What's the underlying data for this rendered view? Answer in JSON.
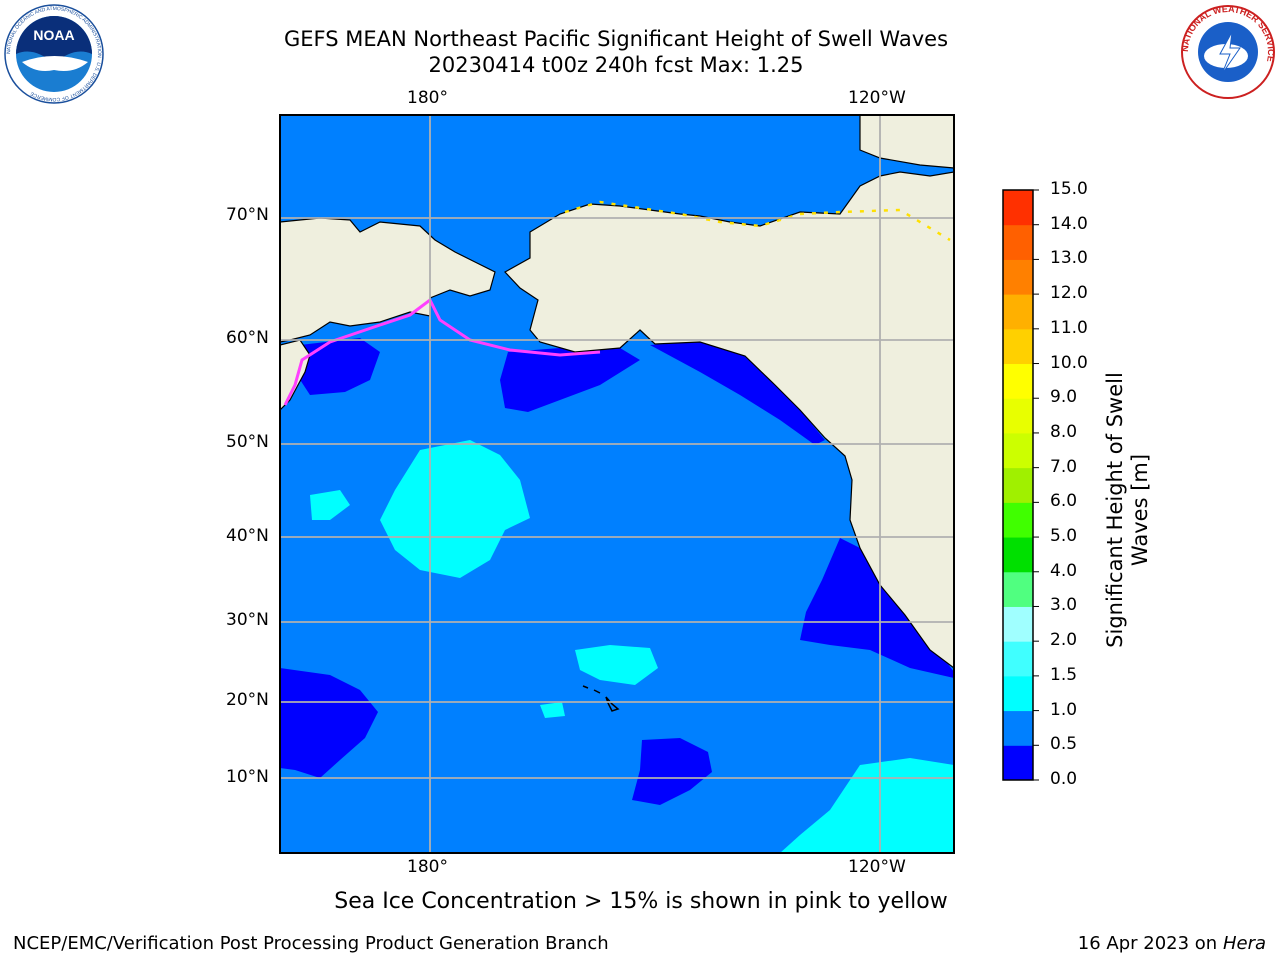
{
  "title_line1": "GEFS MEAN Northeast Pacific Significant Height of Swell Waves",
  "title_line2": "20230414 t00z 240h fcst   Max: 1.25",
  "lon_labels_top": [
    "180°",
    "120°W"
  ],
  "lon_labels_bottom": [
    "180°",
    "120°W"
  ],
  "lat_labels": [
    "70°N",
    "60°N",
    "50°N",
    "40°N",
    "30°N",
    "20°N",
    "10°N"
  ],
  "colorbar": {
    "label": "Significant Height of Swell Waves [m]",
    "ticks": [
      "0.0",
      "0.5",
      "1.0",
      "1.5",
      "2.0",
      "3.0",
      "4.0",
      "5.0",
      "6.0",
      "7.0",
      "8.0",
      "9.0",
      "10.0",
      "11.0",
      "12.0",
      "13.0",
      "14.0",
      "15.0"
    ],
    "colors": [
      "#0000ff",
      "#0080ff",
      "#00ffff",
      "#40ffff",
      "#a0ffff",
      "#50ff80",
      "#00e000",
      "#40ff00",
      "#a0f000",
      "#ccff00",
      "#e8ff00",
      "#ffff00",
      "#ffd000",
      "#ffb000",
      "#ff8000",
      "#ff6000",
      "#ff3000"
    ]
  },
  "map_colors": {
    "land": "#efefde",
    "ocean_main": "#0080ff",
    "ocean_low": "#0000ff",
    "ocean_high": "#00ffff",
    "ice_pink": "#ff40ff",
    "ice_yellow": "#ffe000",
    "grid": "#b0b0b0"
  },
  "note": "Sea Ice Concentration > 15% is shown in pink to yellow",
  "footer_left": "NCEP/EMC/Verification Post Processing Product Generation Branch",
  "footer_right_prefix": "16 Apr 2023 on ",
  "footer_right_host": "Hera",
  "logos": {
    "noaa_text": "NOAA",
    "noaa_ring_text": "NATIONAL OCEANIC AND ATMOSPHERIC ADMINISTRATION · U.S. DEPARTMENT OF COMMERCE",
    "nws_ring_text": "NATIONAL WEATHER SERVICE"
  }
}
